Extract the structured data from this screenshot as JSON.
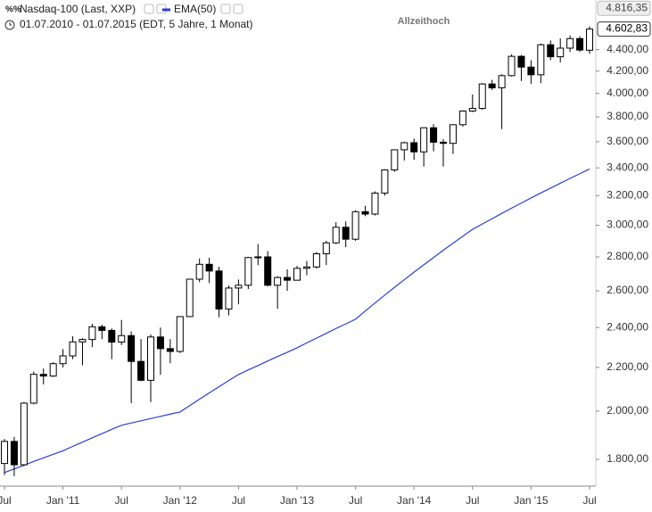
{
  "chart_data": {
    "type": "candlestick",
    "title": "Nasdaq-100 (Last, XXP)",
    "subtitle": "01.07.2010 - 01.07.2015 (EDT, 5 Jahre, 1 Monat)",
    "categories": [
      "Jul",
      null,
      null,
      null,
      null,
      null,
      "Jan '11",
      null,
      null,
      null,
      null,
      null,
      "Jul",
      null,
      null,
      null,
      null,
      null,
      "Jan '12",
      null,
      null,
      null,
      null,
      null,
      "Jul",
      null,
      null,
      null,
      null,
      null,
      "Jan '13",
      null,
      null,
      null,
      null,
      null,
      "Jul",
      null,
      null,
      null,
      null,
      null,
      "Jan '14",
      null,
      null,
      null,
      null,
      null,
      "Jul",
      null,
      null,
      null,
      null,
      null,
      "Jan '15",
      null,
      null,
      null,
      null,
      null,
      "Jul"
    ],
    "open": [
      1784,
      1872,
      1779,
      2035,
      2167,
      2159,
      2218,
      2256,
      2326,
      2338,
      2404,
      2385,
      2325,
      2358,
      2229,
      2139,
      2351,
      2292,
      2278,
      2458,
      2667,
      2755,
      2715,
      2499,
      2616,
      2632,
      2796,
      2800,
      2632,
      2677,
      2661,
      2731,
      2739,
      2819,
      2887,
      2987,
      2910,
      3090,
      3074,
      3218,
      3385,
      3537,
      3592,
      3521,
      3711,
      3596,
      3587,
      3736,
      3849,
      3871,
      4083,
      4049,
      4158,
      4337,
      4236,
      4166,
      4448,
      4333,
      4415,
      4508,
      4395
    ],
    "high": [
      1882,
      1890,
      2040,
      2180,
      2195,
      2225,
      2290,
      2355,
      2345,
      2420,
      2415,
      2395,
      2440,
      2380,
      2340,
      2365,
      2400,
      2340,
      2460,
      2670,
      2790,
      2795,
      2740,
      2630,
      2665,
      2800,
      2880,
      2835,
      2685,
      2725,
      2745,
      2775,
      2830,
      2900,
      3020,
      3025,
      3100,
      3130,
      3230,
      3390,
      3540,
      3600,
      3625,
      3715,
      3740,
      3620,
      3740,
      3855,
      3990,
      4090,
      4120,
      4170,
      4355,
      4350,
      4300,
      4460,
      4490,
      4510,
      4540,
      4530,
      4630
    ],
    "low": [
      1740,
      1735,
      1775,
      2030,
      2120,
      2155,
      2200,
      2240,
      2210,
      2300,
      2340,
      2240,
      2310,
      2035,
      2135,
      2040,
      2165,
      2220,
      2270,
      2455,
      2650,
      2645,
      2455,
      2465,
      2525,
      2610,
      2750,
      2625,
      2500,
      2600,
      2660,
      2690,
      2730,
      2750,
      2880,
      2860,
      2900,
      3060,
      3065,
      3200,
      3370,
      3455,
      3460,
      3410,
      3525,
      3410,
      3505,
      3720,
      3840,
      3860,
      4030,
      3700,
      4150,
      4110,
      4085,
      4090,
      4300,
      4280,
      4380,
      4380,
      4360
    ],
    "close": [
      1872,
      1779,
      2035,
      2167,
      2159,
      2218,
      2256,
      2326,
      2338,
      2404,
      2385,
      2325,
      2358,
      2229,
      2139,
      2351,
      2292,
      2278,
      2458,
      2667,
      2755,
      2715,
      2499,
      2616,
      2632,
      2796,
      2800,
      2632,
      2677,
      2661,
      2731,
      2739,
      2819,
      2887,
      2987,
      2910,
      3090,
      3074,
      3218,
      3385,
      3537,
      3592,
      3521,
      3711,
      3596,
      3587,
      3736,
      3849,
      3871,
      4083,
      4049,
      4158,
      4337,
      4236,
      4166,
      4448,
      4333,
      4415,
      4508,
      4397,
      4602.83
    ],
    "series": [
      {
        "name": "EMA(50)",
        "color": "#2a3fd6",
        "values": [
          1749,
          1763,
          1777,
          1792,
          1806,
          1820,
          1834,
          1852,
          1869,
          1887,
          1904,
          1922,
          1939,
          1949,
          1958,
          1968,
          1977,
          1987,
          1996,
          2024,
          2053,
          2081,
          2109,
          2138,
          2166,
          2188,
          2209,
          2231,
          2253,
          2274,
          2296,
          2321,
          2345,
          2370,
          2395,
          2419,
          2444,
          2488,
          2532,
          2576,
          2620,
          2664,
          2708,
          2752,
          2796,
          2841,
          2885,
          2929,
          2973,
          3008,
          3043,
          3079,
          3114,
          3149,
          3184,
          3219,
          3253,
          3288,
          3323,
          3357,
          3392
        ]
      }
    ],
    "ylim": [
      1698,
      4904
    ],
    "log_scale": true,
    "yticks": [
      {
        "value": 1800,
        "label": "1.800,00"
      },
      {
        "value": 2000,
        "label": "2.000,00"
      },
      {
        "value": 2200,
        "label": "2.200,00"
      },
      {
        "value": 2400,
        "label": "2.400,00"
      },
      {
        "value": 2600,
        "label": "2.600,00"
      },
      {
        "value": 2800,
        "label": "2.800,00"
      },
      {
        "value": 3000,
        "label": "3.000,00"
      },
      {
        "value": 3200,
        "label": "3.200,00"
      },
      {
        "value": 3400,
        "label": "3.400,00"
      },
      {
        "value": 3600,
        "label": "3.600,00"
      },
      {
        "value": 3800,
        "label": "3.800,00"
      },
      {
        "value": 4000,
        "label": "4.000,00"
      },
      {
        "value": 4200,
        "label": "4.200,00"
      },
      {
        "value": 4400,
        "label": "4.400,00"
      }
    ],
    "all_time_high": {
      "text": "Allzeithoch",
      "value": 4816.35,
      "label": "4.816,35"
    },
    "last_price": {
      "value": 4602.83,
      "label": "4.602,83"
    },
    "up_color": "#ffffff",
    "down_color": "#000000"
  }
}
